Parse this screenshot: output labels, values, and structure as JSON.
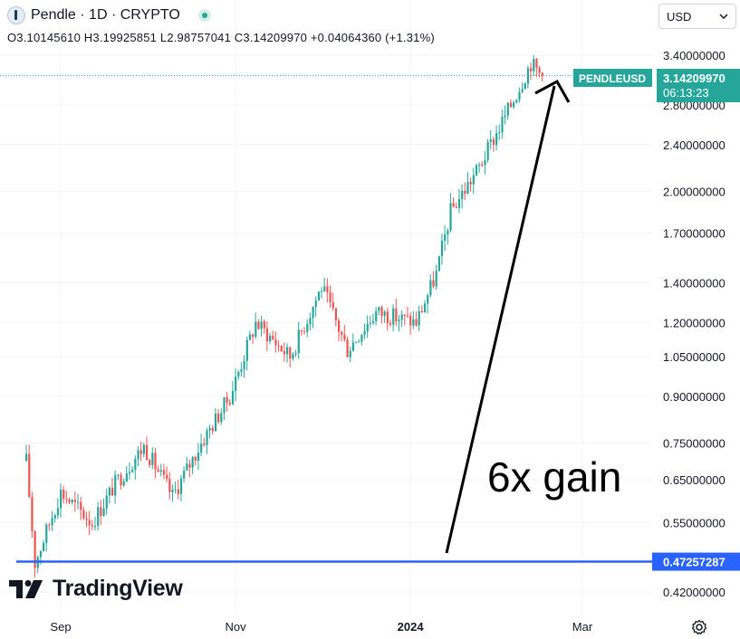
{
  "header": {
    "title": "Pendle · 1D · CRYPTO",
    "ohlc": "O3.10145610 H3.19925851 L2.98757041 C3.14209970 +0.04064360 (+1.31%)",
    "currency": "USD"
  },
  "price_label": {
    "symbol": "PENDLEUSD",
    "price": "3.14209970",
    "countdown": "06:13:23"
  },
  "support_label": "0.47257287",
  "annotation": "6x gain",
  "watermark": "TradingView",
  "colors": {
    "up": "#26a69a",
    "down": "#ef5350",
    "support_line": "#2962ff",
    "arrow": "#000000"
  },
  "chart_data": {
    "type": "candlestick",
    "symbol": "PENDLEUSD",
    "interval": "1D",
    "y_scale": "log",
    "y_ticks": [
      "3.40000000",
      "2.80000000",
      "2.40000000",
      "2.00000000",
      "1.70000000",
      "1.40000000",
      "1.20000000",
      "1.05000000",
      "0.90000000",
      "0.75000000",
      "0.65000000",
      "0.55000000",
      "0.42000000"
    ],
    "x_ticks": [
      "Sep",
      "Nov",
      "2024",
      "Mar"
    ],
    "x_range": [
      "2023-08-20",
      "2024-03-21"
    ],
    "last_close": 3.1420997,
    "support_level": 0.47257287,
    "key_points": [
      {
        "date": "2023-08-20",
        "price": 0.7
      },
      {
        "date": "2023-08-23",
        "price": 0.47
      },
      {
        "date": "2023-09-01",
        "price": 0.62
      },
      {
        "date": "2023-09-12",
        "price": 0.55
      },
      {
        "date": "2023-09-20",
        "price": 0.64
      },
      {
        "date": "2023-09-30",
        "price": 0.74
      },
      {
        "date": "2023-10-10",
        "price": 0.61
      },
      {
        "date": "2023-10-20",
        "price": 0.75
      },
      {
        "date": "2023-10-30",
        "price": 0.9
      },
      {
        "date": "2023-11-08",
        "price": 1.2
      },
      {
        "date": "2023-11-20",
        "price": 1.05
      },
      {
        "date": "2023-12-01",
        "price": 1.38
      },
      {
        "date": "2023-12-10",
        "price": 1.08
      },
      {
        "date": "2023-12-20",
        "price": 1.25
      },
      {
        "date": "2024-01-03",
        "price": 1.2
      },
      {
        "date": "2024-01-10",
        "price": 1.45
      },
      {
        "date": "2024-01-15",
        "price": 1.85
      },
      {
        "date": "2024-01-25",
        "price": 2.2
      },
      {
        "date": "2024-02-05",
        "price": 2.8
      },
      {
        "date": "2024-02-12",
        "price": 3.3
      },
      {
        "date": "2024-02-16",
        "price": 3.14
      }
    ]
  }
}
